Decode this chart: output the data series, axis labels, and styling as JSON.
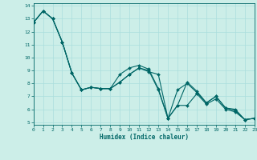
{
  "xlabel": "Humidex (Indice chaleur)",
  "bg_color": "#cceee8",
  "grid_color": "#aadddd",
  "line_color": "#006666",
  "xlim": [
    0,
    23
  ],
  "ylim": [
    4.8,
    14.2
  ],
  "xticks": [
    0,
    1,
    2,
    3,
    4,
    5,
    6,
    7,
    8,
    9,
    10,
    11,
    12,
    13,
    14,
    15,
    16,
    17,
    18,
    19,
    20,
    21,
    22,
    23
  ],
  "yticks": [
    5,
    6,
    7,
    8,
    9,
    10,
    11,
    12,
    13,
    14
  ],
  "series1_x": [
    0,
    1,
    2,
    3,
    4,
    5,
    6,
    7,
    8,
    9,
    10,
    11,
    12,
    13,
    14,
    15,
    16,
    17,
    18,
    19,
    20,
    21,
    22,
    23
  ],
  "series1_y": [
    12.7,
    13.6,
    13.0,
    11.2,
    8.8,
    7.5,
    7.7,
    7.6,
    7.6,
    8.7,
    9.2,
    9.4,
    9.1,
    7.6,
    5.3,
    6.3,
    8.1,
    7.4,
    6.5,
    7.0,
    6.1,
    6.0,
    5.2,
    5.3
  ],
  "series2_x": [
    0,
    1,
    2,
    3,
    4,
    5,
    6,
    7,
    8,
    9,
    10,
    11,
    12,
    13,
    14,
    15,
    16,
    17,
    18,
    19,
    20,
    21,
    22,
    23
  ],
  "series2_y": [
    12.7,
    13.6,
    13.0,
    11.2,
    8.8,
    7.5,
    7.7,
    7.6,
    7.6,
    8.1,
    8.7,
    9.2,
    8.9,
    8.7,
    5.3,
    6.3,
    6.3,
    7.2,
    6.4,
    6.8,
    6.0,
    5.8,
    5.2,
    5.3
  ],
  "series3_x": [
    0,
    1,
    2,
    3,
    4,
    5,
    6,
    7,
    8,
    9,
    10,
    11,
    12,
    13,
    14,
    15,
    16,
    17,
    18,
    19,
    20,
    21,
    22,
    23
  ],
  "series3_y": [
    12.7,
    13.6,
    13.0,
    11.2,
    8.8,
    7.5,
    7.7,
    7.6,
    7.6,
    8.1,
    8.7,
    9.2,
    9.0,
    7.5,
    5.3,
    7.5,
    8.0,
    7.3,
    6.5,
    7.0,
    6.1,
    5.9,
    5.2,
    5.3
  ]
}
